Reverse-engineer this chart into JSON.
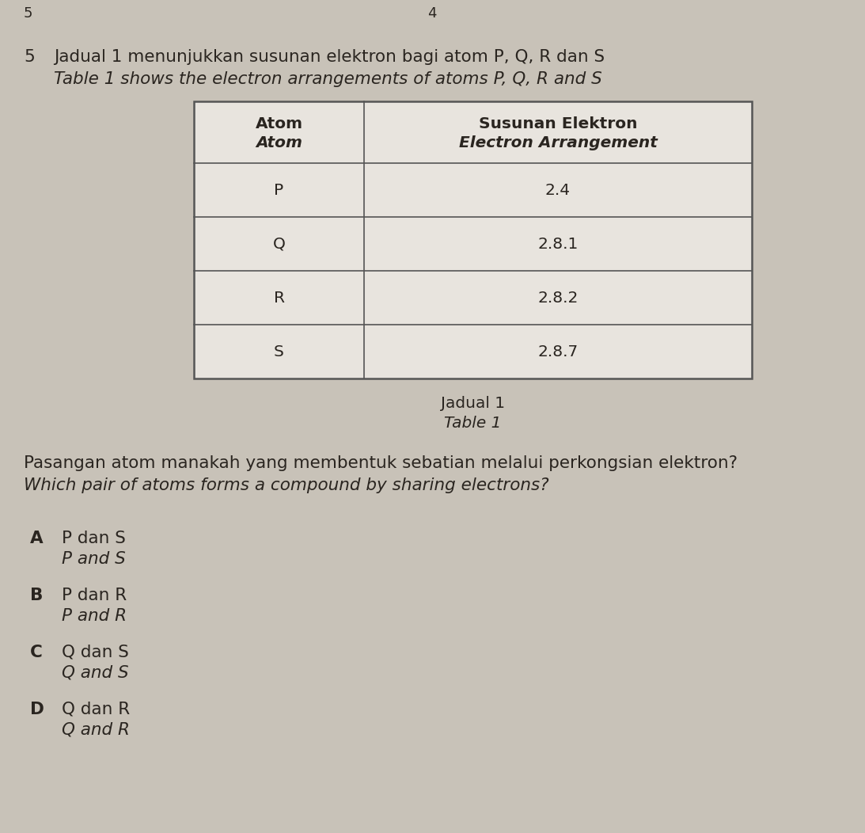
{
  "bg_color": "#c8c2b8",
  "page_num_left": "5",
  "page_num_right": "4",
  "question_number": "5",
  "question_text_malay": "Jadual 1 menunjukkan susunan elektron bagi atom P, Q, R dan S",
  "question_text_english": "Table 1 shows the electron arrangements of atoms P, Q, R and S",
  "table_caption_malay": "Jadual 1",
  "table_caption_english": "Table 1",
  "table_header_col1_line1": "Atom",
  "table_header_col1_line2": "Atom",
  "table_header_col2_line1": "Susunan Elektron",
  "table_header_col2_line2": "Electron Arrangement",
  "table_data": [
    [
      "P",
      "2.4"
    ],
    [
      "Q",
      "2.8.1"
    ],
    [
      "R",
      "2.8.2"
    ],
    [
      "S",
      "2.8.7"
    ]
  ],
  "question2_text_malay": "Pasangan atom manakah yang membentuk sebatian melalui perkongsian elektron?",
  "question2_text_english": "Which pair of atoms forms a compound by sharing electrons?",
  "options": [
    {
      "letter": "A",
      "malay": "P dan S",
      "english": "P and S"
    },
    {
      "letter": "B",
      "malay": "P dan R",
      "english": "P and R"
    },
    {
      "letter": "C",
      "malay": "Q dan S",
      "english": "Q and S"
    },
    {
      "letter": "D",
      "malay": "Q dan R",
      "english": "Q and R"
    }
  ],
  "font_color": "#2a2520",
  "table_border_color": "#555555",
  "table_bg": "#e8e4de",
  "font_size_question": 15.5,
  "font_size_table_header": 14.5,
  "font_size_table_data": 14.5,
  "font_size_options": 15.5,
  "font_size_caption": 14.5,
  "font_size_page_num": 13
}
